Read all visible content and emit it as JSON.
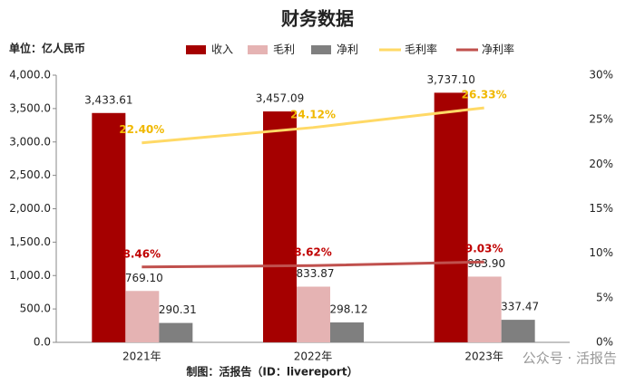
{
  "chart_data": {
    "type": "bar_line",
    "title": "财务数据",
    "unit_label": "单位：亿人民币",
    "footer": "制图：活报告（ID：livereport）",
    "watermark": "公众号 · 活报告",
    "categories": [
      "2021年",
      "2022年",
      "2023年"
    ],
    "series": [
      {
        "name": "收入",
        "type": "bar",
        "color": "#a50000",
        "values": [
          3433.61,
          3457.09,
          3737.1
        ],
        "value_labels": [
          "3,433.61",
          "3,457.09",
          "3,737.10"
        ]
      },
      {
        "name": "毛利",
        "type": "bar",
        "color": "#e5b3b3",
        "values": [
          769.1,
          833.87,
          983.9
        ],
        "value_labels": [
          "769.10",
          "833.87",
          "983.90"
        ]
      },
      {
        "name": "净利",
        "type": "bar",
        "color": "#7f7f7f",
        "values": [
          290.31,
          298.12,
          337.47
        ],
        "value_labels": [
          "290.31",
          "298.12",
          "337.47"
        ]
      },
      {
        "name": "毛利率",
        "type": "line",
        "axis": "y2",
        "color": "#ffd966",
        "label_color": "#f0b800",
        "values": [
          22.4,
          24.12,
          26.33
        ],
        "value_labels": [
          "22.40%",
          "24.12%",
          "26.33%"
        ]
      },
      {
        "name": "净利率",
        "type": "line",
        "axis": "y2",
        "color": "#c0504d",
        "label_color": "#c00000",
        "values": [
          8.46,
          8.62,
          9.03
        ],
        "value_labels": [
          "8.46%",
          "8.62%",
          "9.03%"
        ]
      }
    ],
    "ylim": [
      0,
      4000
    ],
    "yticks": [
      {
        "value": 0,
        "label": "0.0"
      },
      {
        "value": 500,
        "label": "500.0"
      },
      {
        "value": 1000,
        "label": "1,000.0"
      },
      {
        "value": 1500,
        "label": "1,500.0"
      },
      {
        "value": 2000,
        "label": "2,000.0"
      },
      {
        "value": 2500,
        "label": "2,500.0"
      },
      {
        "value": 3000,
        "label": "3,000.0"
      },
      {
        "value": 3500,
        "label": "3,500.0"
      },
      {
        "value": 4000,
        "label": "4,000.0"
      }
    ],
    "y2lim": [
      0,
      30
    ],
    "y2ticks": [
      {
        "value": 0,
        "label": "0%"
      },
      {
        "value": 5,
        "label": "5%"
      },
      {
        "value": 10,
        "label": "10%"
      },
      {
        "value": 15,
        "label": "15%"
      },
      {
        "value": 20,
        "label": "20%"
      },
      {
        "value": 25,
        "label": "25%"
      },
      {
        "value": 30,
        "label": "30%"
      }
    ]
  }
}
